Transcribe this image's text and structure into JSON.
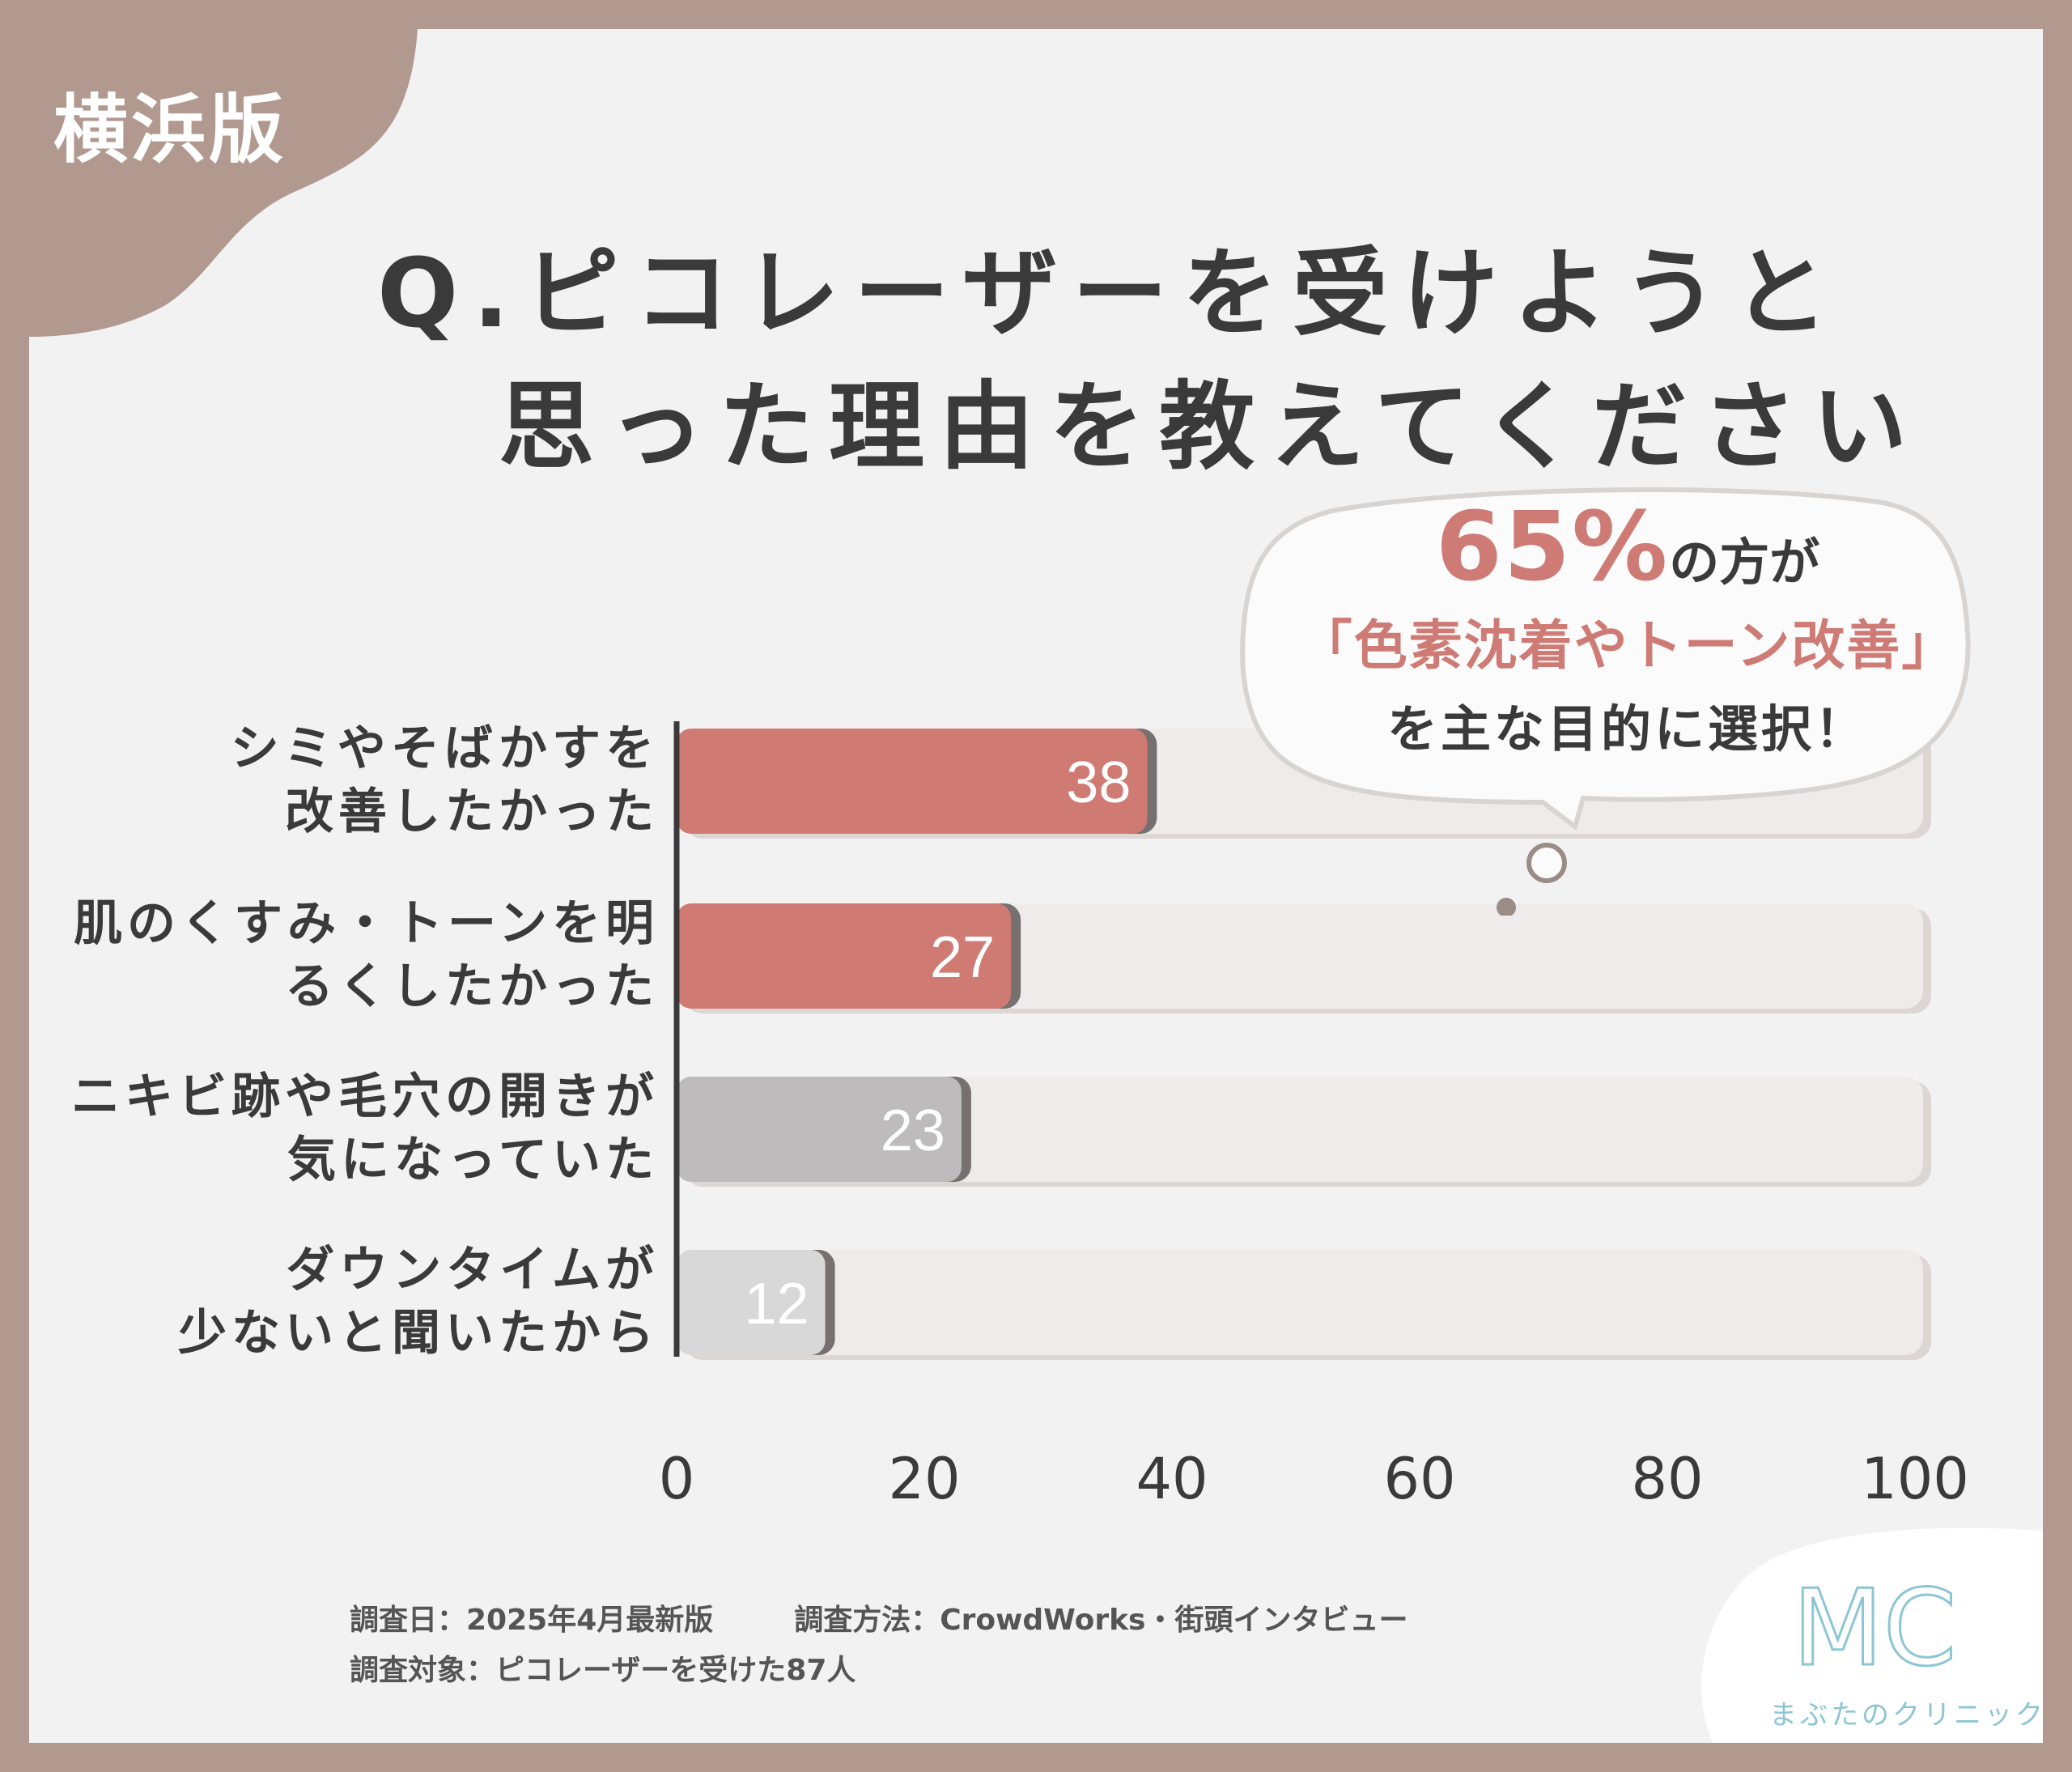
{
  "region_tag": "横浜版",
  "title": {
    "line1": "Q.ピコレーザーを受けようと",
    "line2": "思った理由を教えてください"
  },
  "callout": {
    "percent": "65%",
    "line1_suffix": "の方が",
    "line2": "「色素沈着やトーン改善」",
    "line3": "を主な目的に選択！"
  },
  "chart_data": {
    "type": "bar",
    "orientation": "horizontal",
    "categories": [
      [
        "シミやそばかすを",
        "改善したかった"
      ],
      [
        "肌のくすみ・トーンを明",
        "るくしたかった"
      ],
      [
        "ニキビ跡や毛穴の開きが",
        "気になっていた"
      ],
      [
        "ダウンタイムが",
        "少ないと聞いたから"
      ]
    ],
    "values": [
      38,
      27,
      23,
      12
    ],
    "data_labels": [
      "38",
      "27",
      "23",
      "12"
    ],
    "xlim": [
      0,
      100
    ],
    "xticks": [
      "0",
      "20",
      "40",
      "60",
      "80",
      "100"
    ],
    "bar_colors": [
      "#d07a74",
      "#d07a74",
      "#bdbbbb",
      "#d9d8d8"
    ],
    "track_color": "#efebeb",
    "grid": false,
    "legend": "none"
  },
  "survey": {
    "date": "調査日：2025年4月最新版",
    "method": "調査方法：CrowdWorks・街頭インタビュー",
    "target": "調査対象：ピコレーザーを受けた87人"
  },
  "logo": {
    "mark": "MC",
    "name": "まぶたのクリニック"
  }
}
